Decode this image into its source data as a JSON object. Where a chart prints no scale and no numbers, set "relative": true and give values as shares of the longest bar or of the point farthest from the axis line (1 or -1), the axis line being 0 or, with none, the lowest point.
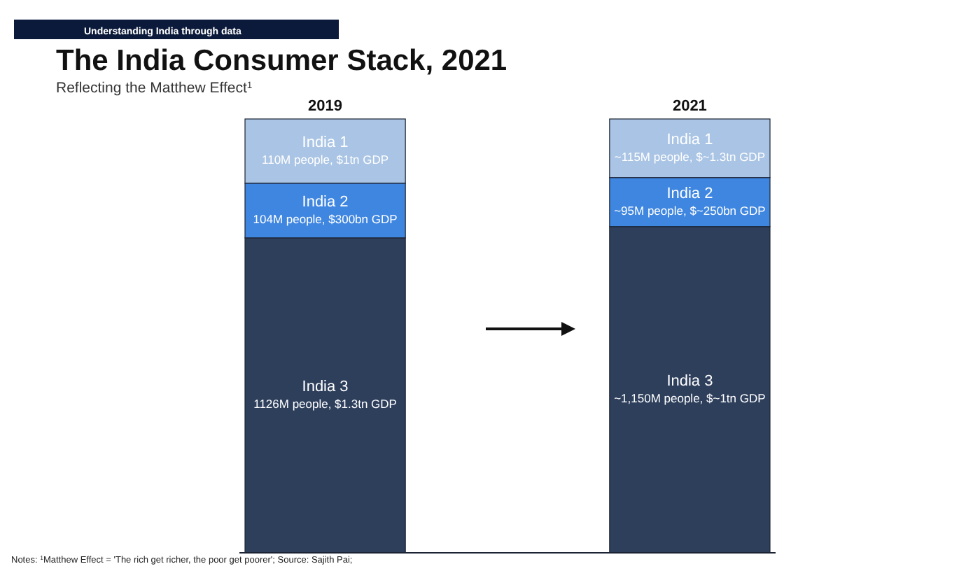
{
  "chart_data": {
    "type": "bar",
    "title": "The India Consumer Stack, 2021",
    "subtitle": "Reflecting the Matthew Effect$^{1}$",
    "annotations": [
      "Understanding India through data",
      "Notes: $^{1}$Matthew Effect = 'The rich get richer, the poor get poorer'; Source: Sajith Pai;",
      "110M people, $1tn GDP",
      "104M people, $300bn GDP",
      "1126M people, $1.3tn GDP",
      "~115M people, $~1.3tn GDP",
      "~95M people, $~250bn GDP",
      "~1,150M people, $~1tn GDP"
    ],
    "categories": [
      "2019",
      "2021"
    ],
    "stacked": true,
    "relative": true,
    "series": [
      {
        "name": "India 3",
        "color": "#2e3f5c",
        "values": [
          0.726,
          0.752
        ]
      },
      {
        "name": "India 2",
        "color": "#3f86e0",
        "values": [
          0.126,
          0.113
        ]
      },
      {
        "name": "India 1",
        "color": "#a9c4e4",
        "values": [
          0.148,
          0.135
        ]
      }
    ]
  }
}
